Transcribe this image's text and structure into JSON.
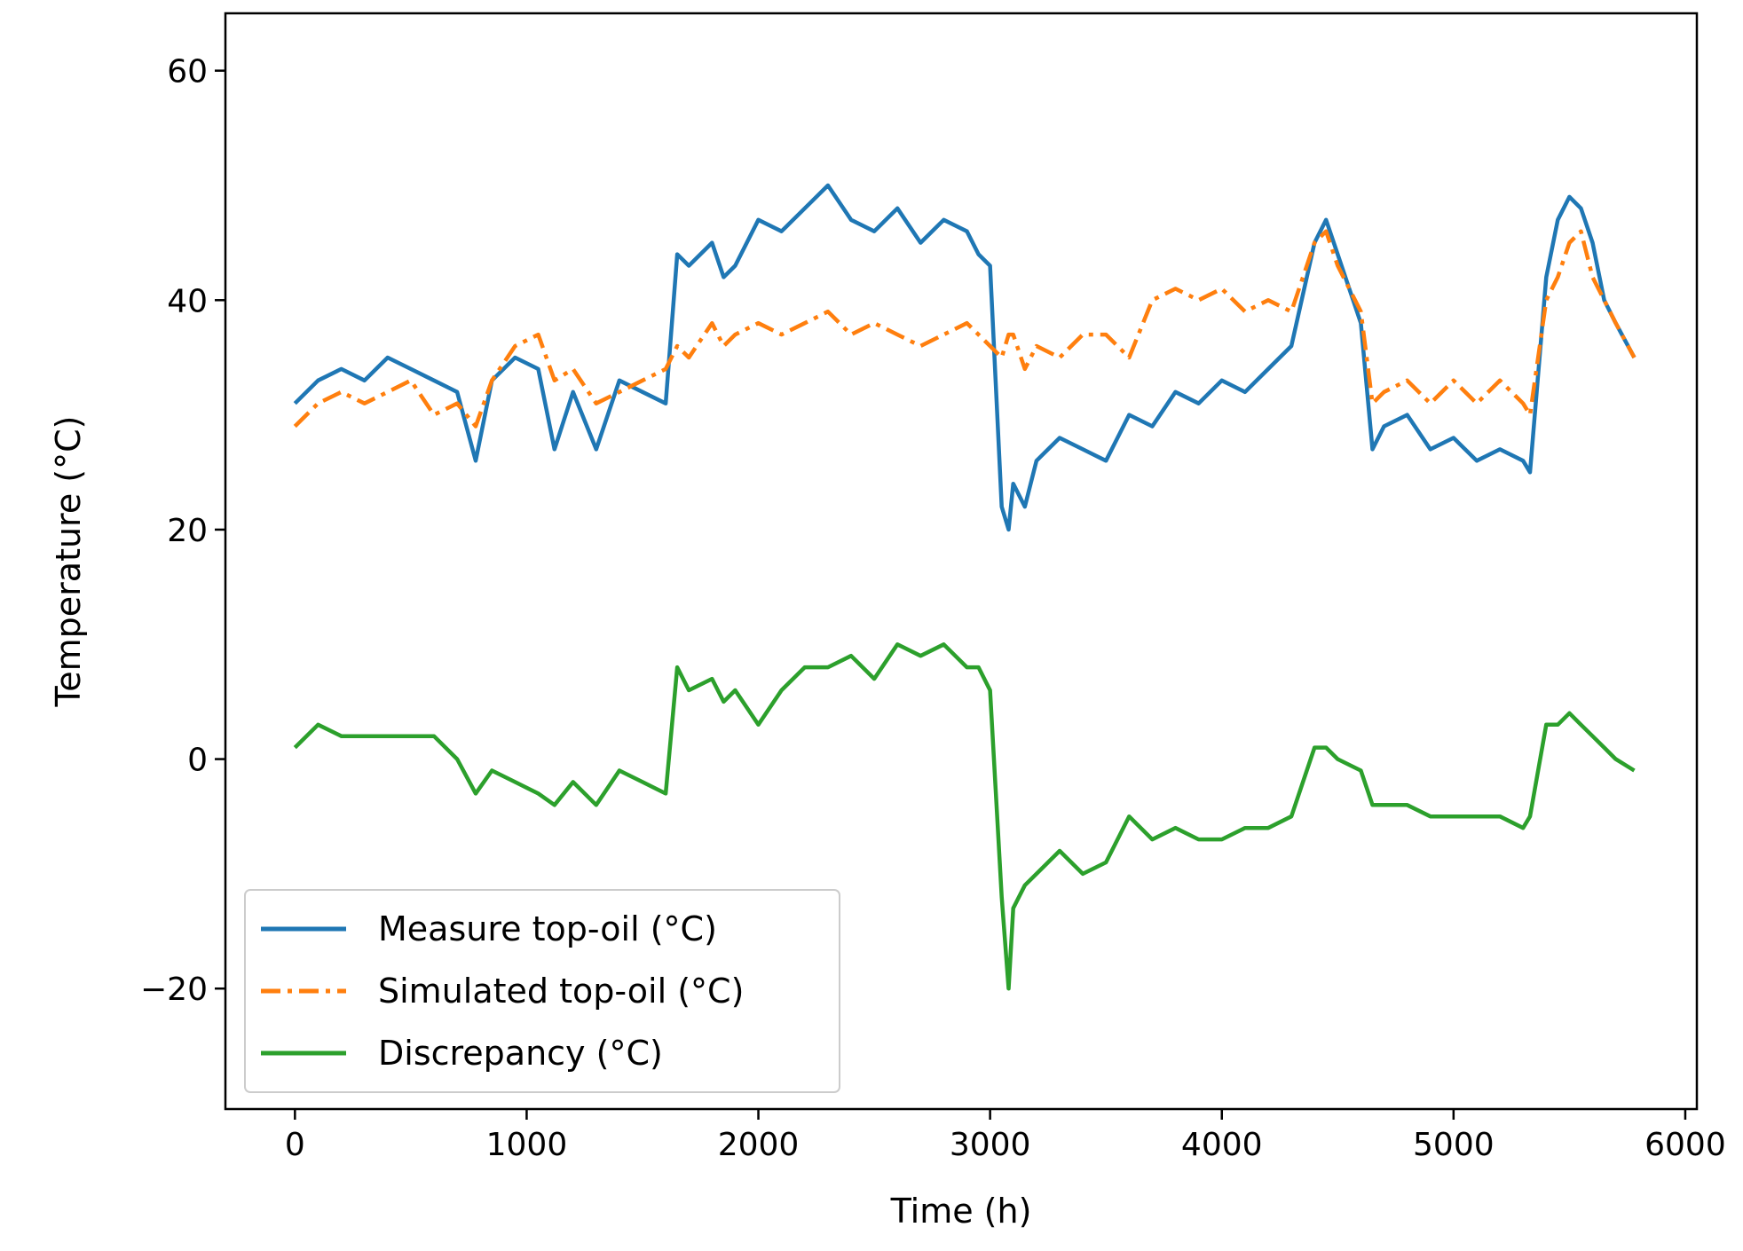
{
  "chart_data": {
    "type": "line",
    "title": "",
    "xlabel": "Time (h)",
    "ylabel": "Temperature (°C)",
    "xlim": [
      -300,
      6050
    ],
    "ylim": [
      -30.5,
      65
    ],
    "xticks": [
      0,
      1000,
      2000,
      3000,
      4000,
      5000,
      6000
    ],
    "xtick_labels": [
      "0",
      "1000",
      "2000",
      "3000",
      "4000",
      "5000",
      "6000"
    ],
    "yticks": [
      -20,
      0,
      20,
      40,
      60
    ],
    "ytick_labels": [
      "−20",
      "0",
      "20",
      "40",
      "60"
    ],
    "grid": false,
    "legend_position": "lower-left",
    "series": [
      {
        "name": "Measure top-oil (°C)",
        "color": "#1f77b4",
        "style": "solid",
        "x": [
          0,
          100,
          200,
          300,
          400,
          500,
          600,
          700,
          780,
          850,
          950,
          1050,
          1120,
          1200,
          1300,
          1400,
          1500,
          1600,
          1650,
          1700,
          1800,
          1850,
          1900,
          2000,
          2100,
          2200,
          2300,
          2400,
          2500,
          2600,
          2700,
          2800,
          2900,
          2950,
          3000,
          3050,
          3080,
          3100,
          3150,
          3200,
          3300,
          3400,
          3500,
          3600,
          3700,
          3800,
          3900,
          4000,
          4100,
          4200,
          4300,
          4400,
          4450,
          4500,
          4600,
          4650,
          4700,
          4800,
          4900,
          5000,
          5100,
          5200,
          5300,
          5330,
          5400,
          5450,
          5500,
          5550,
          5600,
          5650,
          5700,
          5780
        ],
        "values": [
          31,
          33,
          34,
          33,
          35,
          34,
          33,
          32,
          26,
          33,
          35,
          34,
          27,
          32,
          27,
          33,
          32,
          31,
          44,
          43,
          45,
          42,
          43,
          47,
          46,
          48,
          50,
          47,
          46,
          48,
          45,
          47,
          46,
          44,
          43,
          22,
          20,
          24,
          22,
          26,
          28,
          27,
          26,
          30,
          29,
          32,
          31,
          33,
          32,
          34,
          36,
          45,
          47,
          44,
          38,
          27,
          29,
          30,
          27,
          28,
          26,
          27,
          26,
          25,
          42,
          47,
          49,
          48,
          45,
          40,
          38,
          35
        ]
      },
      {
        "name": "Simulated top-oil (°C)",
        "color": "#ff7f0e",
        "style": "dashdot",
        "x": [
          0,
          100,
          200,
          300,
          400,
          500,
          600,
          700,
          780,
          850,
          950,
          1050,
          1120,
          1200,
          1300,
          1400,
          1500,
          1600,
          1650,
          1700,
          1800,
          1850,
          1900,
          2000,
          2100,
          2200,
          2300,
          2400,
          2500,
          2600,
          2700,
          2800,
          2900,
          2950,
          3000,
          3050,
          3080,
          3100,
          3150,
          3200,
          3300,
          3400,
          3500,
          3600,
          3700,
          3800,
          3900,
          4000,
          4100,
          4200,
          4300,
          4400,
          4450,
          4500,
          4600,
          4650,
          4700,
          4800,
          4900,
          5000,
          5100,
          5200,
          5300,
          5330,
          5400,
          5450,
          5500,
          5550,
          5600,
          5650,
          5700,
          5780
        ],
        "values": [
          29,
          31,
          32,
          31,
          32,
          33,
          30,
          31,
          29,
          33,
          36,
          37,
          33,
          34,
          31,
          32,
          33,
          34,
          36,
          35,
          38,
          36,
          37,
          38,
          37,
          38,
          39,
          37,
          38,
          37,
          36,
          37,
          38,
          37,
          36,
          35,
          37,
          37,
          34,
          36,
          35,
          37,
          37,
          35,
          40,
          41,
          40,
          41,
          39,
          40,
          39,
          45,
          46,
          43,
          39,
          31,
          32,
          33,
          31,
          33,
          31,
          33,
          31,
          30,
          40,
          42,
          45,
          46,
          42,
          40,
          38,
          35
        ]
      },
      {
        "name": "Discrepancy (°C)",
        "color": "#2ca02c",
        "style": "solid",
        "x": [
          0,
          100,
          200,
          300,
          400,
          500,
          600,
          700,
          780,
          850,
          950,
          1050,
          1120,
          1200,
          1300,
          1400,
          1500,
          1600,
          1650,
          1700,
          1800,
          1850,
          1900,
          2000,
          2100,
          2200,
          2300,
          2400,
          2500,
          2600,
          2700,
          2800,
          2900,
          2950,
          3000,
          3050,
          3080,
          3100,
          3150,
          3200,
          3300,
          3400,
          3500,
          3600,
          3700,
          3800,
          3900,
          4000,
          4100,
          4200,
          4300,
          4400,
          4450,
          4500,
          4600,
          4650,
          4700,
          4800,
          4900,
          5000,
          5100,
          5200,
          5300,
          5330,
          5400,
          5450,
          5500,
          5550,
          5600,
          5650,
          5700,
          5780
        ],
        "values": [
          1,
          3,
          2,
          2,
          2,
          2,
          2,
          0,
          -3,
          -1,
          -2,
          -3,
          -4,
          -2,
          -4,
          -1,
          -2,
          -3,
          8,
          6,
          7,
          5,
          6,
          3,
          6,
          8,
          8,
          9,
          7,
          10,
          9,
          10,
          8,
          8,
          6,
          -12,
          -20,
          -13,
          -11,
          -10,
          -8,
          -10,
          -9,
          -5,
          -7,
          -6,
          -7,
          -7,
          -6,
          -6,
          -5,
          1,
          1,
          0,
          -1,
          -4,
          -4,
          -4,
          -5,
          -5,
          -5,
          -5,
          -6,
          -5,
          3,
          3,
          4,
          3,
          2,
          1,
          0,
          -1
        ]
      }
    ]
  }
}
